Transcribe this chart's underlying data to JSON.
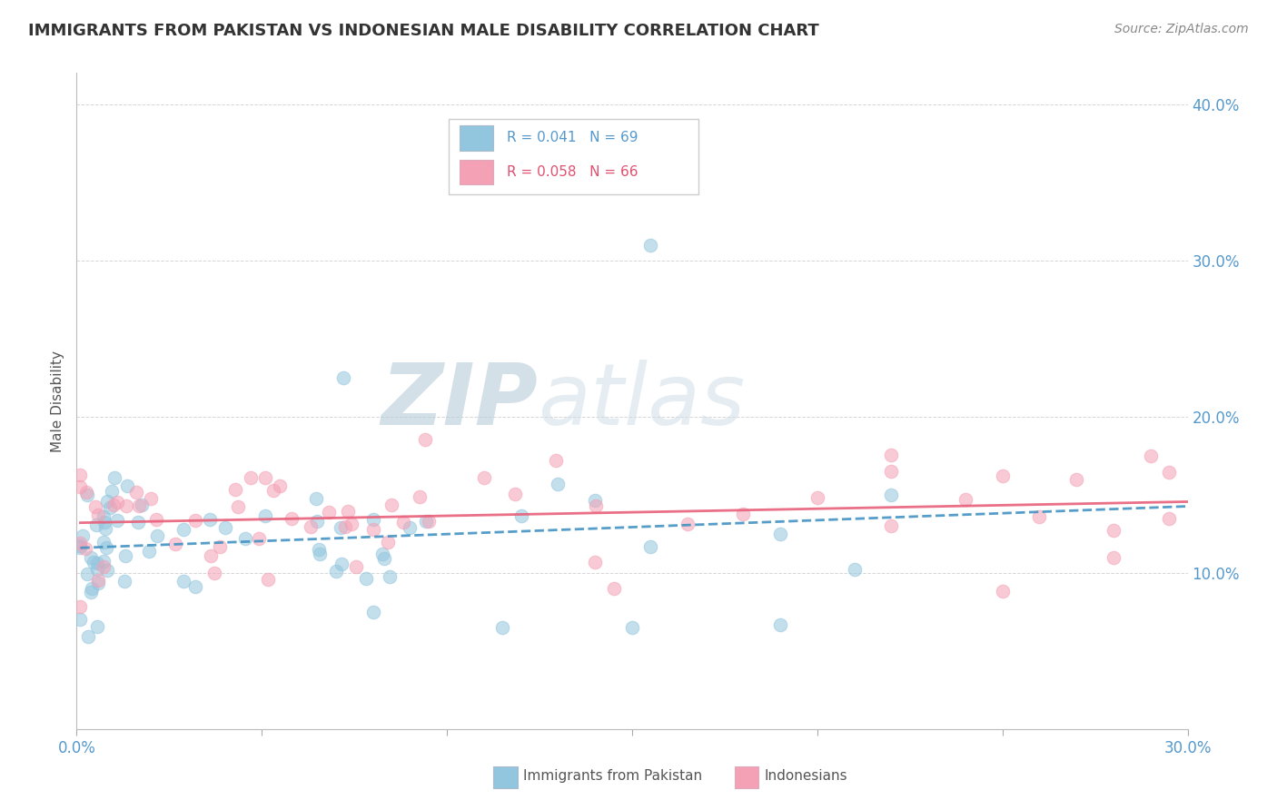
{
  "title": "IMMIGRANTS FROM PAKISTAN VS INDONESIAN MALE DISABILITY CORRELATION CHART",
  "source_text": "Source: ZipAtlas.com",
  "ylabel": "Male Disability",
  "xlim": [
    0.0,
    0.3
  ],
  "ylim": [
    0.0,
    0.42
  ],
  "xticks": [
    0.0,
    0.05,
    0.1,
    0.15,
    0.2,
    0.25,
    0.3
  ],
  "xticklabels": [
    "0.0%",
    "",
    "",
    "",
    "",
    "",
    "30.0%"
  ],
  "yticks": [
    0.0,
    0.1,
    0.2,
    0.3,
    0.4
  ],
  "yticklabels_right": [
    "",
    "10.0%",
    "20.0%",
    "30.0%",
    "40.0%"
  ],
  "pakistan_R": 0.041,
  "pakistan_N": 69,
  "indonesian_R": 0.058,
  "indonesian_N": 66,
  "pakistan_color": "#92c5de",
  "indonesian_color": "#f4a0b5",
  "pakistan_line_color": "#4393c3",
  "indonesian_line_color": "#e8607a",
  "background_color": "#ffffff",
  "grid_color": "#cccccc",
  "axis_color": "#5599cc",
  "title_color": "#333333",
  "legend_box_color": "#dddddd",
  "watermark_zip_color": "#b0c8dc",
  "watermark_atlas_color": "#c8dce8"
}
